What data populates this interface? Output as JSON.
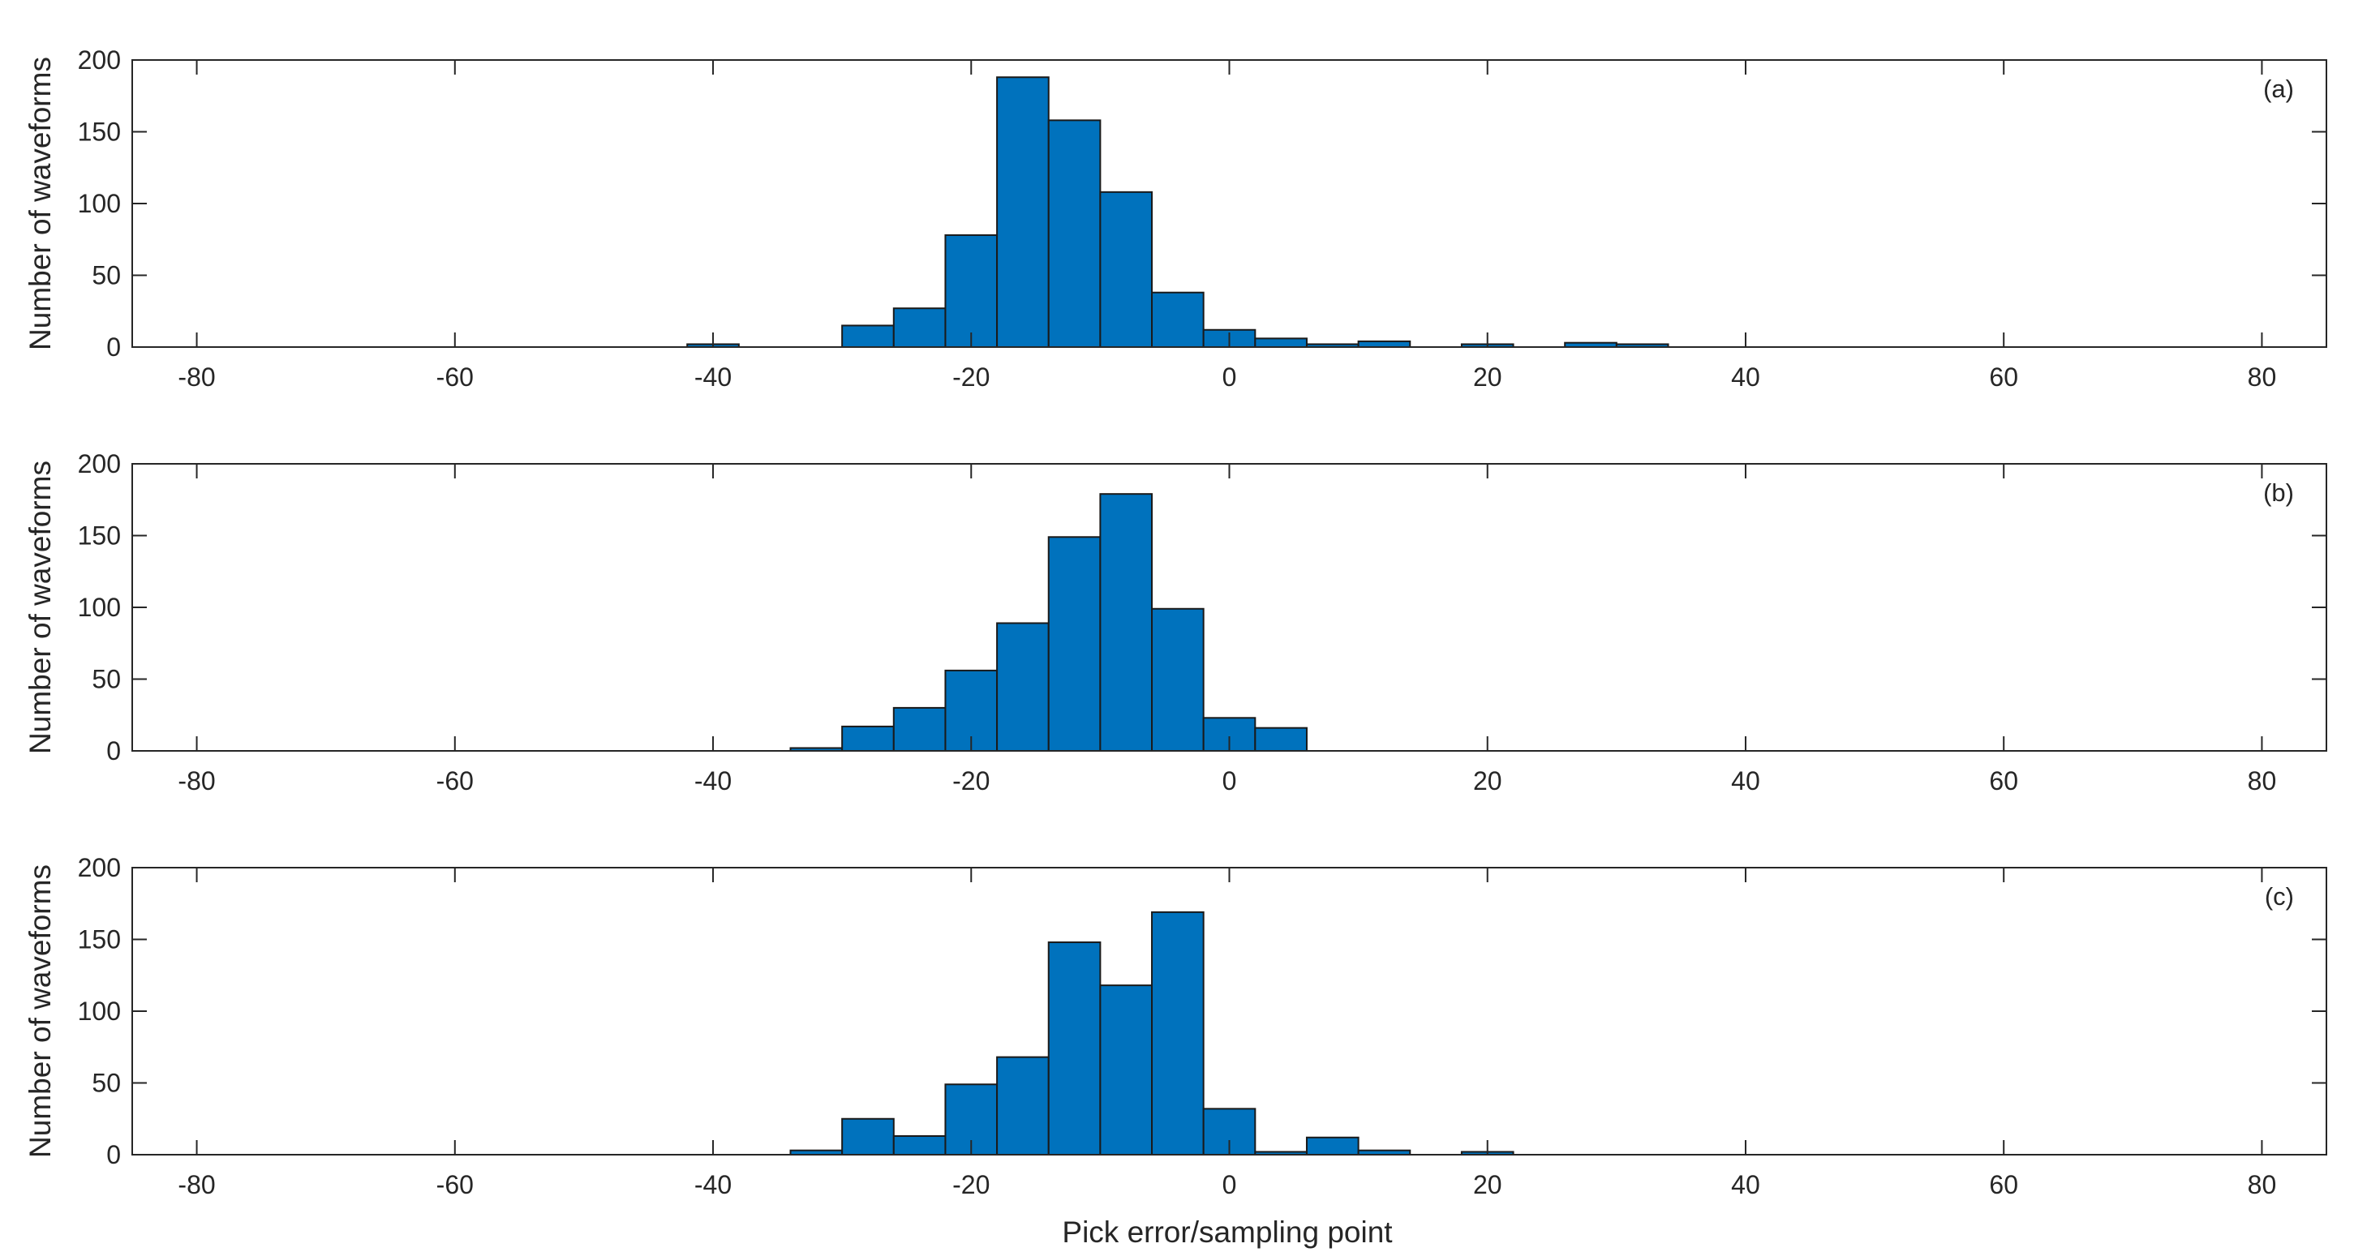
{
  "colors": {
    "bar_fill": "#0072BD",
    "bar_edge": "#1a1a1a",
    "axis": "#262626"
  },
  "chart_data": [
    {
      "type": "bar",
      "panel_label": "(a)",
      "ylabel": "Number of waveforms",
      "xlabel": "",
      "xlim": [
        -85,
        85
      ],
      "ylim": [
        0,
        200
      ],
      "xticks": [
        -80,
        -60,
        -40,
        -20,
        0,
        20,
        40,
        60,
        80
      ],
      "yticks": [
        0,
        50,
        100,
        150,
        200
      ],
      "bin_width": 4,
      "bin_left_edges": [
        -42,
        -30,
        -26,
        -22,
        -18,
        -14,
        -10,
        -6,
        -2,
        2,
        6,
        10,
        18,
        26,
        30
      ],
      "values": [
        2,
        15,
        27,
        78,
        188,
        158,
        108,
        38,
        12,
        6,
        2,
        4,
        2,
        3,
        2
      ]
    },
    {
      "type": "bar",
      "panel_label": "(b)",
      "ylabel": "Number of waveforms",
      "xlabel": "",
      "xlim": [
        -85,
        85
      ],
      "ylim": [
        0,
        200
      ],
      "xticks": [
        -80,
        -60,
        -40,
        -20,
        0,
        20,
        40,
        60,
        80
      ],
      "yticks": [
        0,
        50,
        100,
        150,
        200
      ],
      "bin_width": 4,
      "bin_left_edges": [
        -34,
        -30,
        -26,
        -22,
        -18,
        -14,
        -10,
        -6,
        -2,
        2
      ],
      "values": [
        2,
        17,
        30,
        56,
        89,
        149,
        179,
        99,
        23,
        16
      ]
    },
    {
      "type": "bar",
      "panel_label": "(c)",
      "ylabel": "Number of waveforms",
      "xlabel": "Pick error/sampling point",
      "xlim": [
        -85,
        85
      ],
      "ylim": [
        0,
        200
      ],
      "xticks": [
        -80,
        -60,
        -40,
        -20,
        0,
        20,
        40,
        60,
        80
      ],
      "yticks": [
        0,
        50,
        100,
        150,
        200
      ],
      "bin_width": 4,
      "bin_left_edges": [
        -34,
        -30,
        -26,
        -22,
        -18,
        -14,
        -10,
        -6,
        -2,
        2,
        6,
        10,
        18
      ],
      "values": [
        3,
        25,
        13,
        49,
        68,
        148,
        118,
        169,
        32,
        2,
        12,
        3,
        2
      ]
    }
  ]
}
